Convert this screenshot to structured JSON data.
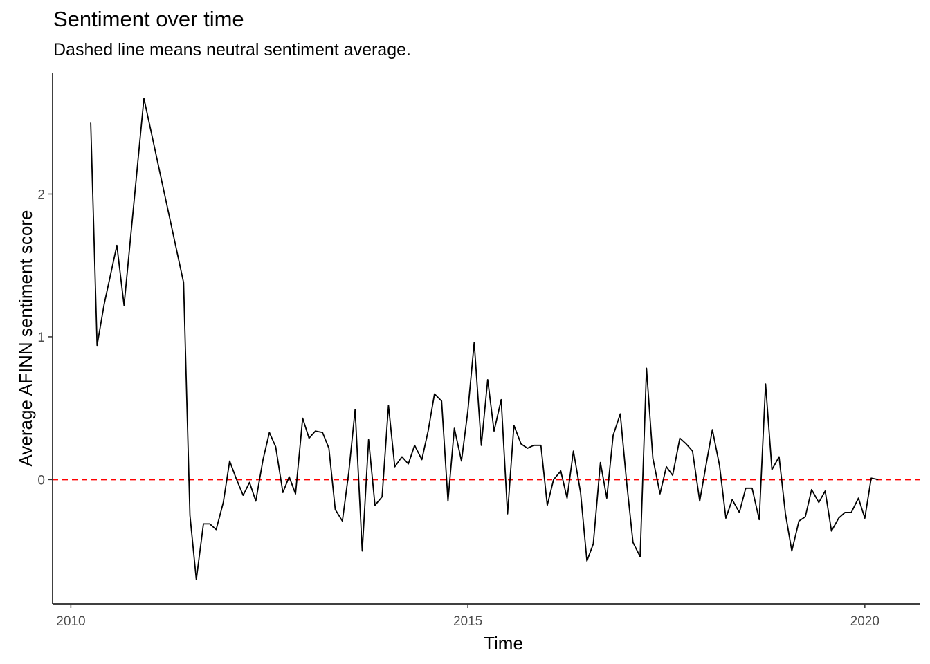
{
  "chart_data": {
    "type": "line",
    "title": "Sentiment over time",
    "subtitle": "Dashed line means neutral sentiment average.",
    "xlabel": "Time",
    "ylabel": "Average AFINN sentiment score",
    "x_ticks": [
      "2010",
      "2015",
      "2020"
    ],
    "y_ticks": [
      "0",
      "1",
      "2"
    ],
    "xlim": [
      2009.77,
      2020.69
    ],
    "ylim": [
      -0.87,
      2.85
    ],
    "grid": false,
    "reference_line": {
      "y": 0,
      "style": "dashed",
      "color": "#ff0000"
    },
    "series": [
      {
        "color": "#000000",
        "points": [
          {
            "x": 2010.25,
            "y": 2.5
          },
          {
            "x": 2010.33,
            "y": 0.94
          },
          {
            "x": 2010.42,
            "y": 1.23
          },
          {
            "x": 2010.58,
            "y": 1.64
          },
          {
            "x": 2010.67,
            "y": 1.22
          },
          {
            "x": 2010.92,
            "y": 2.67
          },
          {
            "x": 2011.42,
            "y": 1.38
          },
          {
            "x": 2011.5,
            "y": -0.25
          },
          {
            "x": 2011.58,
            "y": -0.7
          },
          {
            "x": 2011.67,
            "y": -0.31
          },
          {
            "x": 2011.75,
            "y": -0.31
          },
          {
            "x": 2011.83,
            "y": -0.35
          },
          {
            "x": 2011.92,
            "y": -0.16
          },
          {
            "x": 2012.0,
            "y": 0.13
          },
          {
            "x": 2012.08,
            "y": 0.01
          },
          {
            "x": 2012.17,
            "y": -0.11
          },
          {
            "x": 2012.25,
            "y": -0.02
          },
          {
            "x": 2012.33,
            "y": -0.15
          },
          {
            "x": 2012.42,
            "y": 0.14
          },
          {
            "x": 2012.5,
            "y": 0.33
          },
          {
            "x": 2012.58,
            "y": 0.23
          },
          {
            "x": 2012.67,
            "y": -0.09
          },
          {
            "x": 2012.75,
            "y": 0.02
          },
          {
            "x": 2012.83,
            "y": -0.1
          },
          {
            "x": 2012.92,
            "y": 0.43
          },
          {
            "x": 2013.0,
            "y": 0.29
          },
          {
            "x": 2013.08,
            "y": 0.34
          },
          {
            "x": 2013.17,
            "y": 0.33
          },
          {
            "x": 2013.25,
            "y": 0.22
          },
          {
            "x": 2013.33,
            "y": -0.21
          },
          {
            "x": 2013.42,
            "y": -0.29
          },
          {
            "x": 2013.5,
            "y": 0.05
          },
          {
            "x": 2013.58,
            "y": 0.49
          },
          {
            "x": 2013.67,
            "y": -0.5
          },
          {
            "x": 2013.75,
            "y": 0.28
          },
          {
            "x": 2013.83,
            "y": -0.18
          },
          {
            "x": 2013.92,
            "y": -0.12
          },
          {
            "x": 2014.0,
            "y": 0.52
          },
          {
            "x": 2014.08,
            "y": 0.09
          },
          {
            "x": 2014.17,
            "y": 0.16
          },
          {
            "x": 2014.25,
            "y": 0.11
          },
          {
            "x": 2014.33,
            "y": 0.24
          },
          {
            "x": 2014.42,
            "y": 0.14
          },
          {
            "x": 2014.5,
            "y": 0.34
          },
          {
            "x": 2014.58,
            "y": 0.6
          },
          {
            "x": 2014.67,
            "y": 0.55
          },
          {
            "x": 2014.75,
            "y": -0.15
          },
          {
            "x": 2014.83,
            "y": 0.36
          },
          {
            "x": 2014.92,
            "y": 0.13
          },
          {
            "x": 2015.0,
            "y": 0.48
          },
          {
            "x": 2015.08,
            "y": 0.96
          },
          {
            "x": 2015.17,
            "y": 0.24
          },
          {
            "x": 2015.25,
            "y": 0.7
          },
          {
            "x": 2015.33,
            "y": 0.34
          },
          {
            "x": 2015.42,
            "y": 0.56
          },
          {
            "x": 2015.5,
            "y": -0.24
          },
          {
            "x": 2015.58,
            "y": 0.38
          },
          {
            "x": 2015.67,
            "y": 0.25
          },
          {
            "x": 2015.75,
            "y": 0.22
          },
          {
            "x": 2015.83,
            "y": 0.24
          },
          {
            "x": 2015.92,
            "y": 0.24
          },
          {
            "x": 2016.0,
            "y": -0.18
          },
          {
            "x": 2016.08,
            "y": 0.0
          },
          {
            "x": 2016.17,
            "y": 0.06
          },
          {
            "x": 2016.25,
            "y": -0.13
          },
          {
            "x": 2016.33,
            "y": 0.2
          },
          {
            "x": 2016.42,
            "y": -0.09
          },
          {
            "x": 2016.5,
            "y": -0.57
          },
          {
            "x": 2016.58,
            "y": -0.45
          },
          {
            "x": 2016.67,
            "y": 0.12
          },
          {
            "x": 2016.75,
            "y": -0.13
          },
          {
            "x": 2016.83,
            "y": 0.31
          },
          {
            "x": 2016.92,
            "y": 0.46
          },
          {
            "x": 2017.0,
            "y": -0.02
          },
          {
            "x": 2017.08,
            "y": -0.44
          },
          {
            "x": 2017.17,
            "y": -0.54
          },
          {
            "x": 2017.25,
            "y": 0.78
          },
          {
            "x": 2017.33,
            "y": 0.15
          },
          {
            "x": 2017.42,
            "y": -0.1
          },
          {
            "x": 2017.5,
            "y": 0.09
          },
          {
            "x": 2017.58,
            "y": 0.03
          },
          {
            "x": 2017.67,
            "y": 0.29
          },
          {
            "x": 2017.75,
            "y": 0.25
          },
          {
            "x": 2017.83,
            "y": 0.2
          },
          {
            "x": 2017.92,
            "y": -0.15
          },
          {
            "x": 2018.0,
            "y": 0.1
          },
          {
            "x": 2018.08,
            "y": 0.35
          },
          {
            "x": 2018.17,
            "y": 0.1
          },
          {
            "x": 2018.25,
            "y": -0.27
          },
          {
            "x": 2018.33,
            "y": -0.14
          },
          {
            "x": 2018.42,
            "y": -0.23
          },
          {
            "x": 2018.5,
            "y": -0.06
          },
          {
            "x": 2018.58,
            "y": -0.06
          },
          {
            "x": 2018.67,
            "y": -0.28
          },
          {
            "x": 2018.75,
            "y": 0.67
          },
          {
            "x": 2018.83,
            "y": 0.07
          },
          {
            "x": 2018.92,
            "y": 0.16
          },
          {
            "x": 2019.0,
            "y": -0.24
          },
          {
            "x": 2019.08,
            "y": -0.5
          },
          {
            "x": 2019.17,
            "y": -0.29
          },
          {
            "x": 2019.25,
            "y": -0.26
          },
          {
            "x": 2019.33,
            "y": -0.07
          },
          {
            "x": 2019.42,
            "y": -0.16
          },
          {
            "x": 2019.5,
            "y": -0.08
          },
          {
            "x": 2019.58,
            "y": -0.36
          },
          {
            "x": 2019.67,
            "y": -0.27
          },
          {
            "x": 2019.75,
            "y": -0.23
          },
          {
            "x": 2019.83,
            "y": -0.23
          },
          {
            "x": 2019.92,
            "y": -0.13
          },
          {
            "x": 2020.0,
            "y": -0.27
          },
          {
            "x": 2020.08,
            "y": 0.01
          },
          {
            "x": 2020.17,
            "y": 0.0
          }
        ]
      }
    ]
  }
}
